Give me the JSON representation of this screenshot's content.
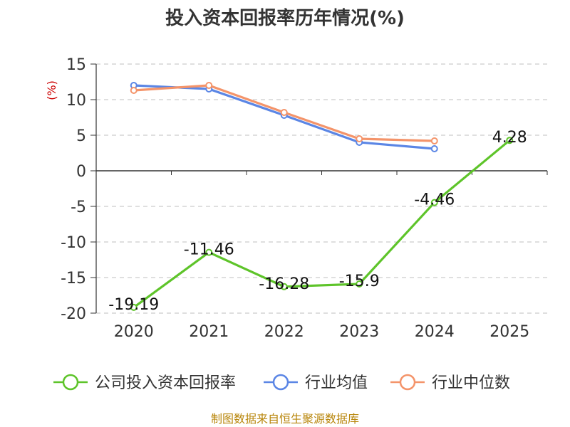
{
  "chart_data": {
    "type": "line",
    "title": "投入资本回报率历年情况(%)",
    "ylabel": "(%)",
    "xlabel": "",
    "categories": [
      "2020",
      "2021",
      "2022",
      "2023",
      "2024",
      "2025"
    ],
    "ylim": [
      -20,
      15
    ],
    "yticks": [
      "15",
      "10",
      "5",
      "0",
      "-5",
      "-10",
      "-15",
      "-20"
    ],
    "grid": true,
    "legend_position": "bottom",
    "series": [
      {
        "name": "公司投入资本回报率",
        "color": "#5ec42a",
        "values": [
          -19.19,
          -11.46,
          -16.28,
          -15.9,
          -4.46,
          4.28
        ],
        "labels": [
          "-19.19",
          "-11.46",
          "-16.28",
          "-15.9",
          "-4.46",
          "4.28"
        ]
      },
      {
        "name": "行业均值",
        "color": "#5b86e5",
        "values": [
          12.0,
          11.5,
          7.8,
          4.0,
          3.1,
          null
        ]
      },
      {
        "name": "行业中位数",
        "color": "#f4946a",
        "values": [
          11.3,
          12.0,
          8.2,
          4.5,
          4.2,
          null
        ]
      }
    ]
  },
  "source_text": "制图数据来自恒生聚源数据库"
}
